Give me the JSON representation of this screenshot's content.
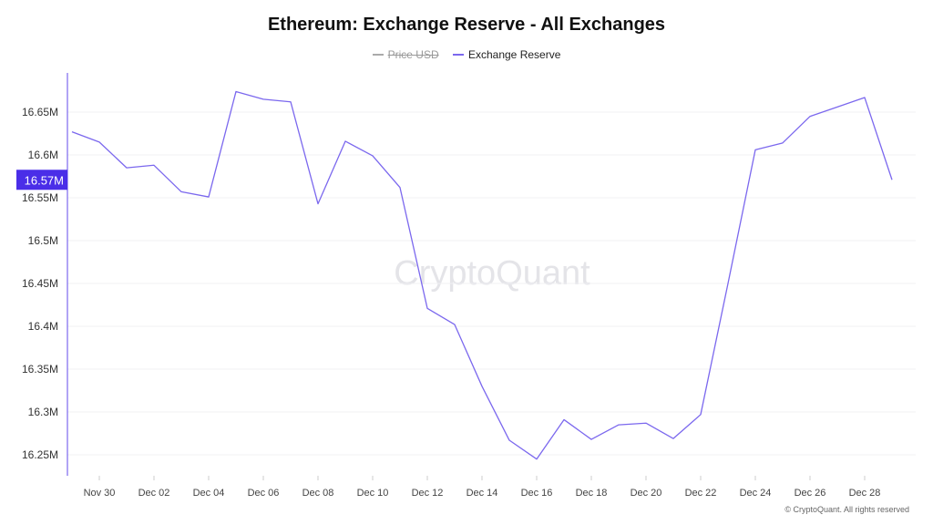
{
  "chart_data": {
    "type": "line",
    "title": "Ethereum: Exchange Reserve - All Exchanges",
    "legend": [
      {
        "name": "Price USD",
        "color": "#aaaaaa",
        "hidden": true
      },
      {
        "name": "Exchange Reserve",
        "color": "#7b68ee",
        "hidden": false
      }
    ],
    "legend_position": "top-center",
    "x": [
      "Nov 29",
      "Nov 30",
      "Dec 01",
      "Dec 02",
      "Dec 03",
      "Dec 04",
      "Dec 05",
      "Dec 06",
      "Dec 07",
      "Dec 08",
      "Dec 09",
      "Dec 10",
      "Dec 11",
      "Dec 12",
      "Dec 13",
      "Dec 14",
      "Dec 15",
      "Dec 16",
      "Dec 17",
      "Dec 18",
      "Dec 19",
      "Dec 20",
      "Dec 21",
      "Dec 22",
      "Dec 23",
      "Dec 24",
      "Dec 25",
      "Dec 26",
      "Dec 27",
      "Dec 28",
      "Dec 29"
    ],
    "series": [
      {
        "name": "Exchange Reserve",
        "unit": "M",
        "values": [
          16.627,
          16.615,
          16.585,
          16.588,
          16.557,
          16.551,
          16.674,
          16.665,
          16.662,
          16.543,
          16.616,
          16.599,
          16.562,
          16.421,
          16.402,
          16.33,
          16.267,
          16.245,
          16.291,
          16.268,
          16.285,
          16.287,
          16.269,
          16.297,
          16.45,
          16.606,
          16.614,
          16.645,
          16.656,
          16.667,
          16.571
        ]
      }
    ],
    "x_tick_labels": [
      "Nov 30",
      "Dec 02",
      "Dec 04",
      "Dec 06",
      "Dec 08",
      "Dec 10",
      "Dec 12",
      "Dec 14",
      "Dec 16",
      "Dec 18",
      "Dec 20",
      "Dec 22",
      "Dec 24",
      "Dec 26",
      "Dec 28"
    ],
    "y_ticks": [
      16.25,
      16.3,
      16.35,
      16.4,
      16.45,
      16.5,
      16.55,
      16.6,
      16.65
    ],
    "y_tick_labels": [
      "16.25M",
      "16.3M",
      "16.35M",
      "16.4M",
      "16.45M",
      "16.5M",
      "16.55M",
      "16.6M",
      "16.65M"
    ],
    "ylim": [
      16.22,
      16.7
    ],
    "grid": true,
    "current_value_label": "16.57M",
    "watermark": "CryptoQuant"
  },
  "footer": "© CryptoQuant. All rights reserved"
}
